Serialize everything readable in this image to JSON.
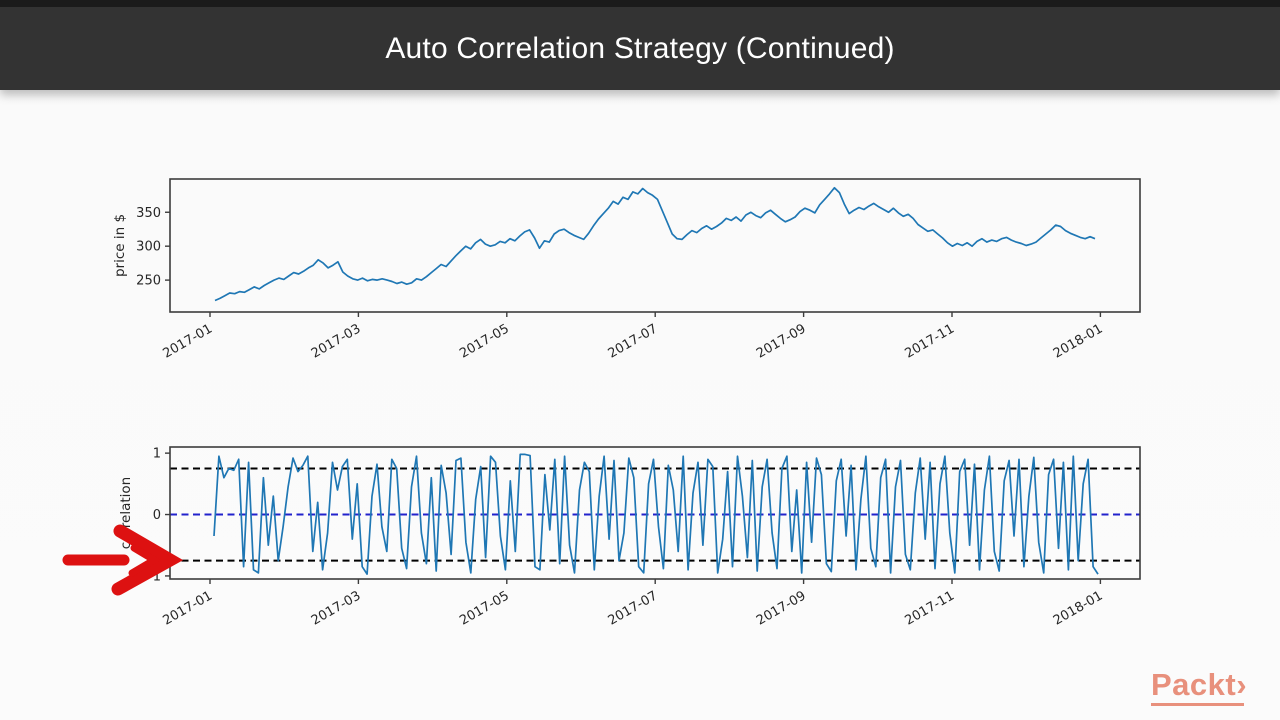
{
  "header": {
    "title": "Auto Correlation Strategy (Continued)",
    "bg_color": "#333333",
    "text_color": "#ffffff"
  },
  "branding": {
    "logo_text": "Packt",
    "logo_chevron": "›",
    "logo_color": "#e8907c"
  },
  "annotation": {
    "type": "hand-drawn-arrow",
    "direction": "right",
    "color": "#dd1111"
  },
  "chart_data": [
    {
      "type": "line",
      "title": "",
      "xlabel": "",
      "ylabel": "price in $",
      "line_color": "#1f77b4",
      "grid": false,
      "legend": "none",
      "ylim": [
        203,
        399
      ],
      "y_ticks": [
        {
          "value": 250,
          "label": "250"
        },
        {
          "value": 300,
          "label": "300"
        },
        {
          "value": 350,
          "label": "350"
        }
      ],
      "x_ticks": [
        "2017-01",
        "2017-03",
        "2017-05",
        "2017-07",
        "2017-09",
        "2017-11",
        "2018-01"
      ],
      "values": [
        220,
        223,
        227,
        231,
        230,
        233,
        232,
        236,
        240,
        237,
        242,
        246,
        250,
        253,
        251,
        256,
        261,
        259,
        263,
        268,
        272,
        280,
        275,
        268,
        272,
        277,
        262,
        256,
        252,
        250,
        253,
        249,
        251,
        250,
        252,
        250,
        248,
        245,
        247,
        244,
        246,
        252,
        250,
        255,
        261,
        267,
        273,
        270,
        278,
        286,
        293,
        300,
        296,
        305,
        310,
        303,
        300,
        302,
        307,
        305,
        311,
        308,
        315,
        321,
        324,
        312,
        297,
        308,
        306,
        318,
        323,
        325,
        320,
        316,
        313,
        310,
        319,
        330,
        340,
        348,
        356,
        366,
        362,
        372,
        369,
        380,
        377,
        385,
        379,
        375,
        369,
        352,
        335,
        318,
        311,
        310,
        317,
        323,
        320,
        326,
        330,
        325,
        329,
        334,
        341,
        338,
        343,
        337,
        346,
        350,
        345,
        342,
        349,
        353,
        347,
        341,
        336,
        339,
        343,
        351,
        356,
        353,
        349,
        361,
        369,
        377,
        386,
        379,
        362,
        348,
        353,
        357,
        354,
        359,
        363,
        358,
        354,
        350,
        356,
        349,
        344,
        347,
        341,
        332,
        327,
        322,
        324,
        318,
        312,
        305,
        300,
        304,
        301,
        305,
        300,
        307,
        311,
        306,
        309,
        307,
        311,
        313,
        309,
        306,
        304,
        301,
        303,
        306,
        312,
        318,
        324,
        331,
        329,
        323,
        319,
        316,
        313,
        311,
        314,
        311
      ]
    },
    {
      "type": "line",
      "title": "",
      "xlabel": "",
      "ylabel": "correlation",
      "line_color": "#1f77b4",
      "grid": false,
      "legend": "none",
      "ylim": [
        -1.05,
        1.1
      ],
      "y_ticks": [
        {
          "value": -1,
          "label": "−1"
        },
        {
          "value": 0,
          "label": "0"
        },
        {
          "value": 1,
          "label": "1"
        }
      ],
      "x_ticks": [
        "2017-01",
        "2017-03",
        "2017-05",
        "2017-07",
        "2017-09",
        "2017-11",
        "2018-01"
      ],
      "hlines": [
        {
          "y": 0.75,
          "color": "#000000",
          "style": "dashed"
        },
        {
          "y": 0,
          "color": "#2222cc",
          "style": "dashed"
        },
        {
          "y": -0.75,
          "color": "#000000",
          "style": "dashed"
        }
      ],
      "values": [
        -0.35,
        0.95,
        0.6,
        0.75,
        0.72,
        0.9,
        -0.85,
        0.85,
        -0.9,
        -0.95,
        0.6,
        -0.5,
        0.3,
        -0.75,
        -0.2,
        0.45,
        0.92,
        0.7,
        0.8,
        0.95,
        -0.6,
        0.2,
        -0.9,
        -0.3,
        0.85,
        0.4,
        0.78,
        0.9,
        -0.4,
        0.5,
        -0.85,
        -0.97,
        0.3,
        0.82,
        -0.2,
        -0.6,
        0.9,
        0.75,
        -0.55,
        -0.88,
        0.45,
        0.95,
        -0.3,
        -0.8,
        0.6,
        -0.92,
        0.8,
        0.35,
        -0.65,
        0.88,
        0.92,
        -0.45,
        -0.95,
        0.25,
        0.78,
        -0.7,
        0.95,
        0.85,
        -0.35,
        -0.9,
        0.55,
        -0.6,
        0.98,
        0.98,
        0.96,
        -0.85,
        -0.9,
        0.65,
        -0.25,
        0.9,
        -0.8,
        0.95,
        -0.5,
        -0.95,
        0.4,
        0.85,
        0.7,
        -0.9,
        0.3,
        0.95,
        -0.4,
        0.88,
        -0.75,
        -0.3,
        0.92,
        0.6,
        -0.85,
        -0.95,
        0.5,
        0.9,
        -0.2,
        -0.88,
        0.8,
        0.4,
        -0.6,
        0.95,
        -0.9,
        0.35,
        0.85,
        -0.5,
        0.9,
        0.78,
        -0.95,
        -0.4,
        0.7,
        -0.85,
        0.95,
        0.3,
        -0.7,
        0.88,
        -0.92,
        0.45,
        0.9,
        -0.3,
        -0.88,
        0.75,
        0.95,
        -0.6,
        0.4,
        -0.95,
        0.85,
        -0.45,
        0.92,
        0.65,
        -0.8,
        -0.93,
        0.55,
        0.9,
        -0.35,
        0.8,
        -0.9,
        0.25,
        0.95,
        -0.55,
        -0.85,
        0.6,
        0.9,
        -0.95,
        0.45,
        0.88,
        -0.65,
        -0.9,
        0.35,
        0.92,
        -0.4,
        0.85,
        -0.88,
        0.5,
        0.95,
        -0.3,
        -0.95,
        0.7,
        0.9,
        -0.5,
        0.82,
        -0.9,
        0.4,
        0.95,
        -0.6,
        -0.92,
        0.55,
        0.88,
        -0.35,
        0.9,
        -0.85,
        0.3,
        0.93,
        -0.45,
        -0.95,
        0.65,
        0.9,
        -0.55,
        0.85,
        -0.9,
        0.95,
        -0.75,
        0.5,
        0.9,
        -0.85,
        -0.97
      ]
    }
  ]
}
